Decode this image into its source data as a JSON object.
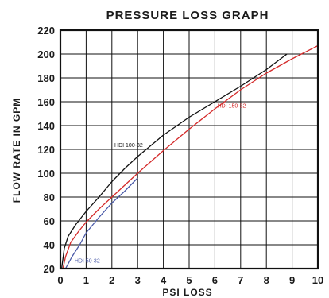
{
  "chart_data": {
    "type": "line",
    "title": "PRESSURE LOSS GRAPH",
    "xlabel": "PSI LOSS",
    "ylabel": "FLOW RATE IN GPM",
    "xlim": [
      0,
      10
    ],
    "ylim": [
      20,
      220
    ],
    "x_ticks": [
      "0",
      "1",
      "2",
      "3",
      "4",
      "5",
      "6",
      "7",
      "8",
      "9",
      "10"
    ],
    "y_ticks": [
      "20",
      "40",
      "60",
      "80",
      "100",
      "120",
      "140",
      "160",
      "180",
      "200",
      "220"
    ],
    "grid": true,
    "series": [
      {
        "name": "HDI 100-32",
        "color": "#111111",
        "label_at": [
          2.1,
          122
        ],
        "points": [
          [
            0.05,
            20
          ],
          [
            0.15,
            37
          ],
          [
            0.3,
            47
          ],
          [
            0.6,
            57
          ],
          [
            1,
            68
          ],
          [
            1.5,
            80
          ],
          [
            2,
            93
          ],
          [
            2.5,
            104
          ],
          [
            3,
            114
          ],
          [
            4,
            132
          ],
          [
            5,
            147
          ],
          [
            6,
            160
          ],
          [
            7,
            173
          ],
          [
            8,
            187
          ],
          [
            8.8,
            200
          ]
        ]
      },
      {
        "name": "HDI 150-32",
        "color": "#d42a2a",
        "label_at": [
          6.1,
          155
        ],
        "points": [
          [
            0.1,
            20
          ],
          [
            0.2,
            30
          ],
          [
            0.4,
            42
          ],
          [
            0.7,
            51
          ],
          [
            1,
            59
          ],
          [
            1.5,
            70
          ],
          [
            2,
            80
          ],
          [
            2.5,
            90
          ],
          [
            3,
            100
          ],
          [
            4,
            119
          ],
          [
            5,
            137
          ],
          [
            6,
            154
          ],
          [
            7,
            170
          ],
          [
            8,
            184
          ],
          [
            9,
            196
          ],
          [
            10,
            207
          ]
        ]
      },
      {
        "name": "HDI 50-32",
        "color": "#4a5aa8",
        "label_at": [
          0.55,
          25
        ],
        "points": [
          [
            0.2,
            20
          ],
          [
            0.45,
            30
          ],
          [
            0.75,
            40
          ],
          [
            1,
            50
          ],
          [
            1.5,
            63
          ],
          [
            2,
            75
          ],
          [
            2.5,
            85
          ],
          [
            3,
            96
          ]
        ]
      }
    ]
  }
}
